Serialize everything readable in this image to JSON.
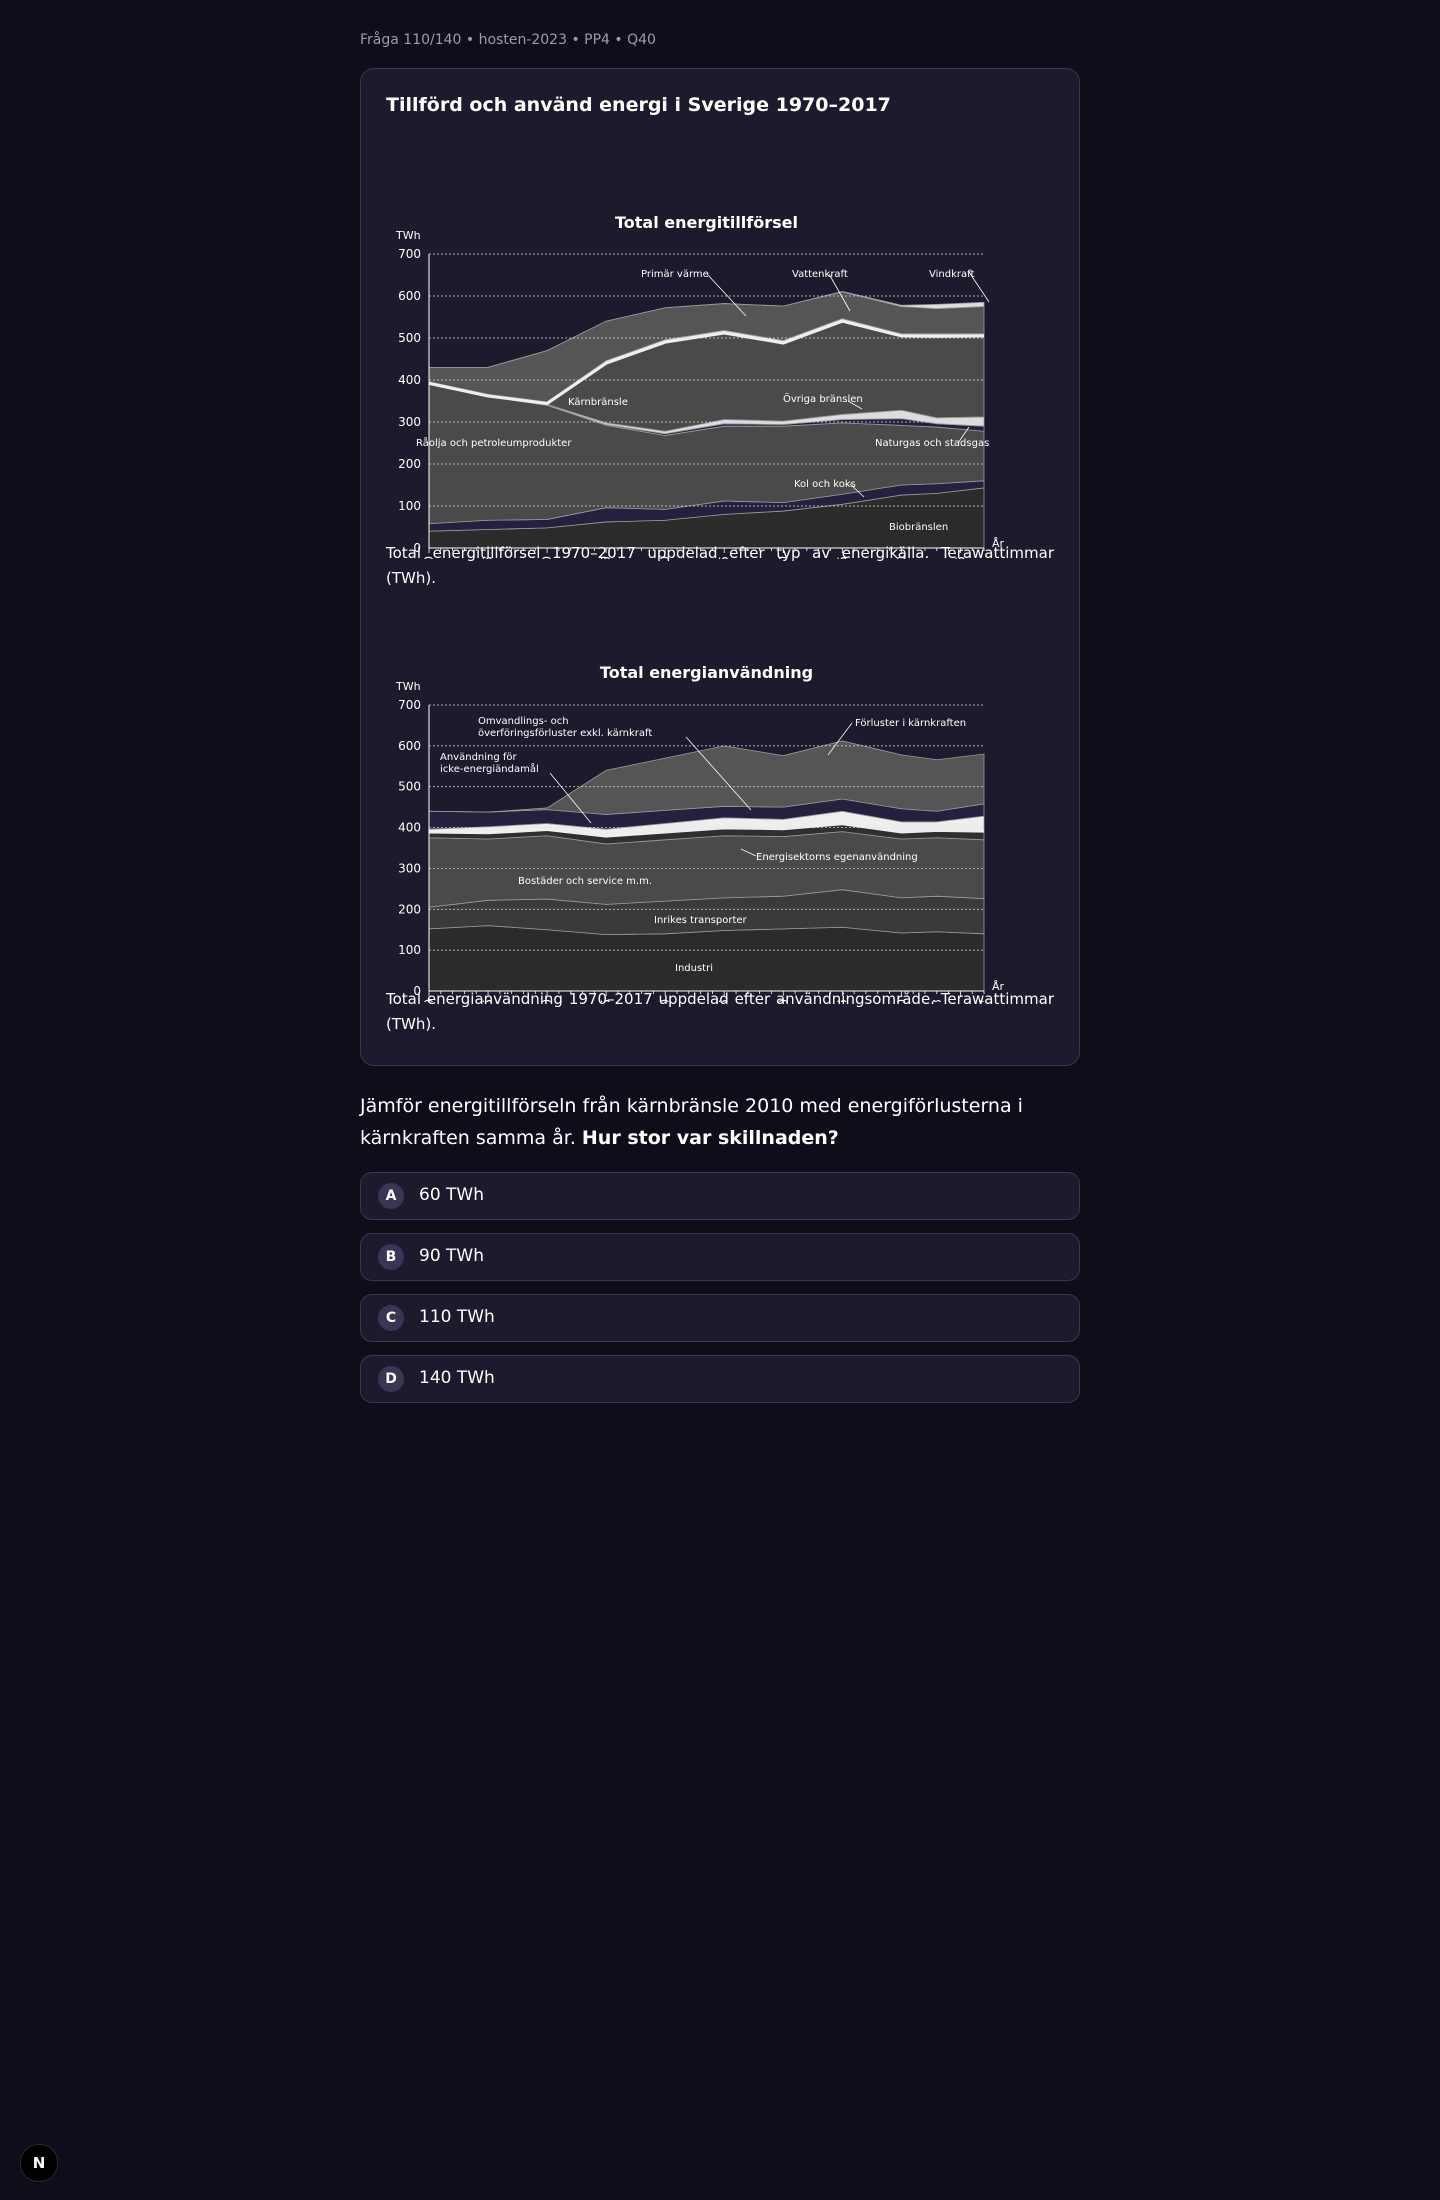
{
  "meta": "Fråga 110/140 • hosten-2023 • PP4 • Q40",
  "card_title": "Tillförd och använd energi i Sverige 1970–2017",
  "caption1": "Total energitillförsel 1970–2017 uppdelad efter typ av energikälla. Terawattimmar (TWh).",
  "caption2": "Total energianvändning 1970–2017 uppdelad efter användningsområde. Terawattimmar (TWh).",
  "question": {
    "text": "Jämför energitillförseln från kärnbränsle 2010 med energiförlusterna i kärnkraften samma år.",
    "bold": "Hur stor var skillnaden?"
  },
  "options": [
    {
      "letter": "A",
      "text": "60 TWh"
    },
    {
      "letter": "B",
      "text": "90 TWh"
    },
    {
      "letter": "C",
      "text": "110 TWh"
    },
    {
      "letter": "D",
      "text": "140 TWh"
    }
  ],
  "logo_text": "N",
  "chart_data": [
    {
      "type": "area",
      "title": "Total energitillförsel",
      "ylabel": "TWh",
      "xlabel": "År",
      "ylim": [
        0,
        700
      ],
      "yticks": [
        0,
        100,
        200,
        300,
        400,
        500,
        600,
        700
      ],
      "xticks": [
        1970,
        1975,
        1980,
        1985,
        1990,
        1995,
        2000,
        2005,
        2010,
        2015
      ],
      "x": [
        1970,
        1975,
        1980,
        1985,
        1990,
        1995,
        2000,
        2005,
        2010,
        2013,
        2017
      ],
      "stacked": true,
      "series": [
        {
          "name": "Biobränslen",
          "values": [
            40,
            44,
            48,
            62,
            66,
            80,
            88,
            104,
            126,
            130,
            143
          ]
        },
        {
          "name": "Kol och koks",
          "values": [
            58,
            66,
            68,
            96,
            92,
            112,
            108,
            128,
            150,
            153,
            160
          ]
        },
        {
          "name": "Råolja och petroleumprodukter",
          "values": [
            390,
            360,
            340,
            292,
            268,
            290,
            290,
            298,
            292,
            288,
            278
          ]
        },
        {
          "name": "Naturgas och stadsgas",
          "values": [
            390,
            360,
            340,
            294,
            272,
            296,
            294,
            306,
            308,
            296,
            290
          ]
        },
        {
          "name": "Övriga bränslen",
          "values": [
            392,
            362,
            342,
            298,
            278,
            306,
            302,
            318,
            328,
            310,
            312
          ]
        },
        {
          "name": "Kärnbränsle",
          "values": [
            392,
            362,
            344,
            440,
            490,
            512,
            488,
            540,
            505,
            504,
            505
          ]
        },
        {
          "name": "Primär värme",
          "values": [
            396,
            366,
            348,
            446,
            496,
            518,
            494,
            546,
            510,
            510,
            510
          ]
        },
        {
          "name": "Vattenkraft",
          "values": [
            430,
            430,
            470,
            540,
            572,
            582,
            576,
            610,
            575,
            570,
            575
          ]
        },
        {
          "name": "Vindkraft",
          "values": [
            430,
            430,
            470,
            540,
            572,
            582,
            576,
            611,
            578,
            580,
            585
          ]
        }
      ],
      "annotations": [
        "Primär värme",
        "Vattenkraft",
        "Vindkraft",
        "Kärnbränsle",
        "Övriga bränslen",
        "Råolja och petroleumprodukter",
        "Naturgas och stadsgas",
        "Kol och koks",
        "Biobränslen"
      ]
    },
    {
      "type": "area",
      "title": "Total energianvändning",
      "ylabel": "TWh",
      "xlabel": "År",
      "ylim": [
        0,
        700
      ],
      "yticks": [
        0,
        100,
        200,
        300,
        400,
        500,
        600,
        700
      ],
      "xticks": [
        1970,
        1975,
        1980,
        1985,
        1990,
        1995,
        2000,
        2005,
        2010,
        2013,
        2017
      ],
      "x": [
        1970,
        1975,
        1980,
        1985,
        1990,
        1995,
        2000,
        2005,
        2010,
        2013,
        2017
      ],
      "stacked": true,
      "series": [
        {
          "name": "Industri",
          "values": [
            152,
            160,
            150,
            138,
            140,
            148,
            152,
            156,
            142,
            145,
            140
          ]
        },
        {
          "name": "Inrikes transporter",
          "values": [
            205,
            222,
            225,
            212,
            220,
            228,
            232,
            248,
            228,
            232,
            226
          ]
        },
        {
          "name": "Bostäder och service m.m.",
          "values": [
            375,
            372,
            380,
            360,
            370,
            380,
            378,
            390,
            372,
            375,
            370
          ]
        },
        {
          "name": "Energisektorns egenanvändning",
          "values": [
            388,
            386,
            394,
            378,
            388,
            398,
            396,
            408,
            388,
            392,
            390
          ]
        },
        {
          "name": "Användning för icke-energiändamål",
          "values": [
            396,
            402,
            410,
            396,
            410,
            424,
            420,
            440,
            414,
            414,
            428
          ]
        },
        {
          "name": "Omvandlings- och överföringsförluster exkl. kärnkraft",
          "values": [
            440,
            438,
            444,
            432,
            442,
            452,
            450,
            470,
            446,
            440,
            458
          ]
        },
        {
          "name": "Förluster i kärnkraften",
          "values": [
            440,
            438,
            448,
            540,
            570,
            600,
            576,
            612,
            578,
            566,
            580
          ]
        }
      ],
      "annotations": [
        "Omvandlings- och överföringsförluster exkl. kärnkraft",
        "Förluster i kärnkraften",
        "Användning för icke-energiändamål",
        "Energisektorns egenanvändning",
        "Bostäder och service m.m.",
        "Inrikes transporter",
        "Industri"
      ]
    }
  ],
  "colors": {
    "background": "#0f0d1a",
    "card": "#1c1a2c",
    "border": "#3a3752",
    "area_dark": "#2b2b2b",
    "area_mid": "#4a4a4a",
    "area_navy": "#24213f",
    "highlight": "#e9e9e9"
  }
}
